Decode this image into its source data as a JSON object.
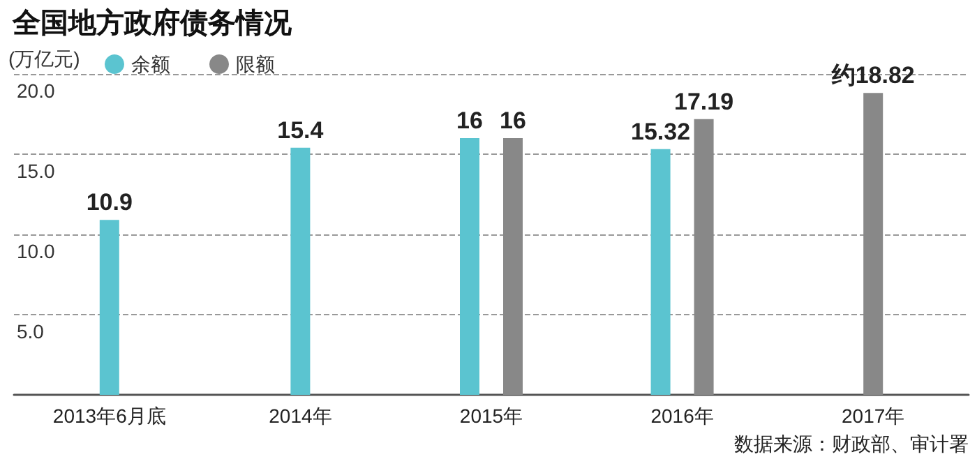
{
  "chart_data": {
    "type": "bar",
    "title": "全国地方政府债务情况",
    "ylabel": "(万亿元)",
    "categories": [
      "2013年6月底",
      "2014年",
      "2015年",
      "2016年",
      "2017年"
    ],
    "series": [
      {
        "name": "余额",
        "color": "#5bc4d0",
        "values": [
          10.9,
          15.4,
          16,
          15.32,
          null
        ],
        "value_labels": [
          "10.9",
          "15.4",
          "16",
          "15.32",
          null
        ]
      },
      {
        "name": "限额",
        "color": "#888888",
        "values": [
          null,
          null,
          16,
          17.19,
          18.82
        ],
        "value_labels": [
          null,
          null,
          "16",
          "17.19",
          "约18.82"
        ]
      }
    ],
    "ylim": [
      0,
      20
    ],
    "yticks": [
      {
        "value": 5,
        "label": "5.0"
      },
      {
        "value": 10,
        "label": "10.0"
      },
      {
        "value": 15,
        "label": "15.0"
      },
      {
        "value": 20,
        "label": "20.0"
      }
    ],
    "grid": "y",
    "legend": "top left",
    "annotations": [
      "数据来源：财政部、审计署"
    ]
  }
}
